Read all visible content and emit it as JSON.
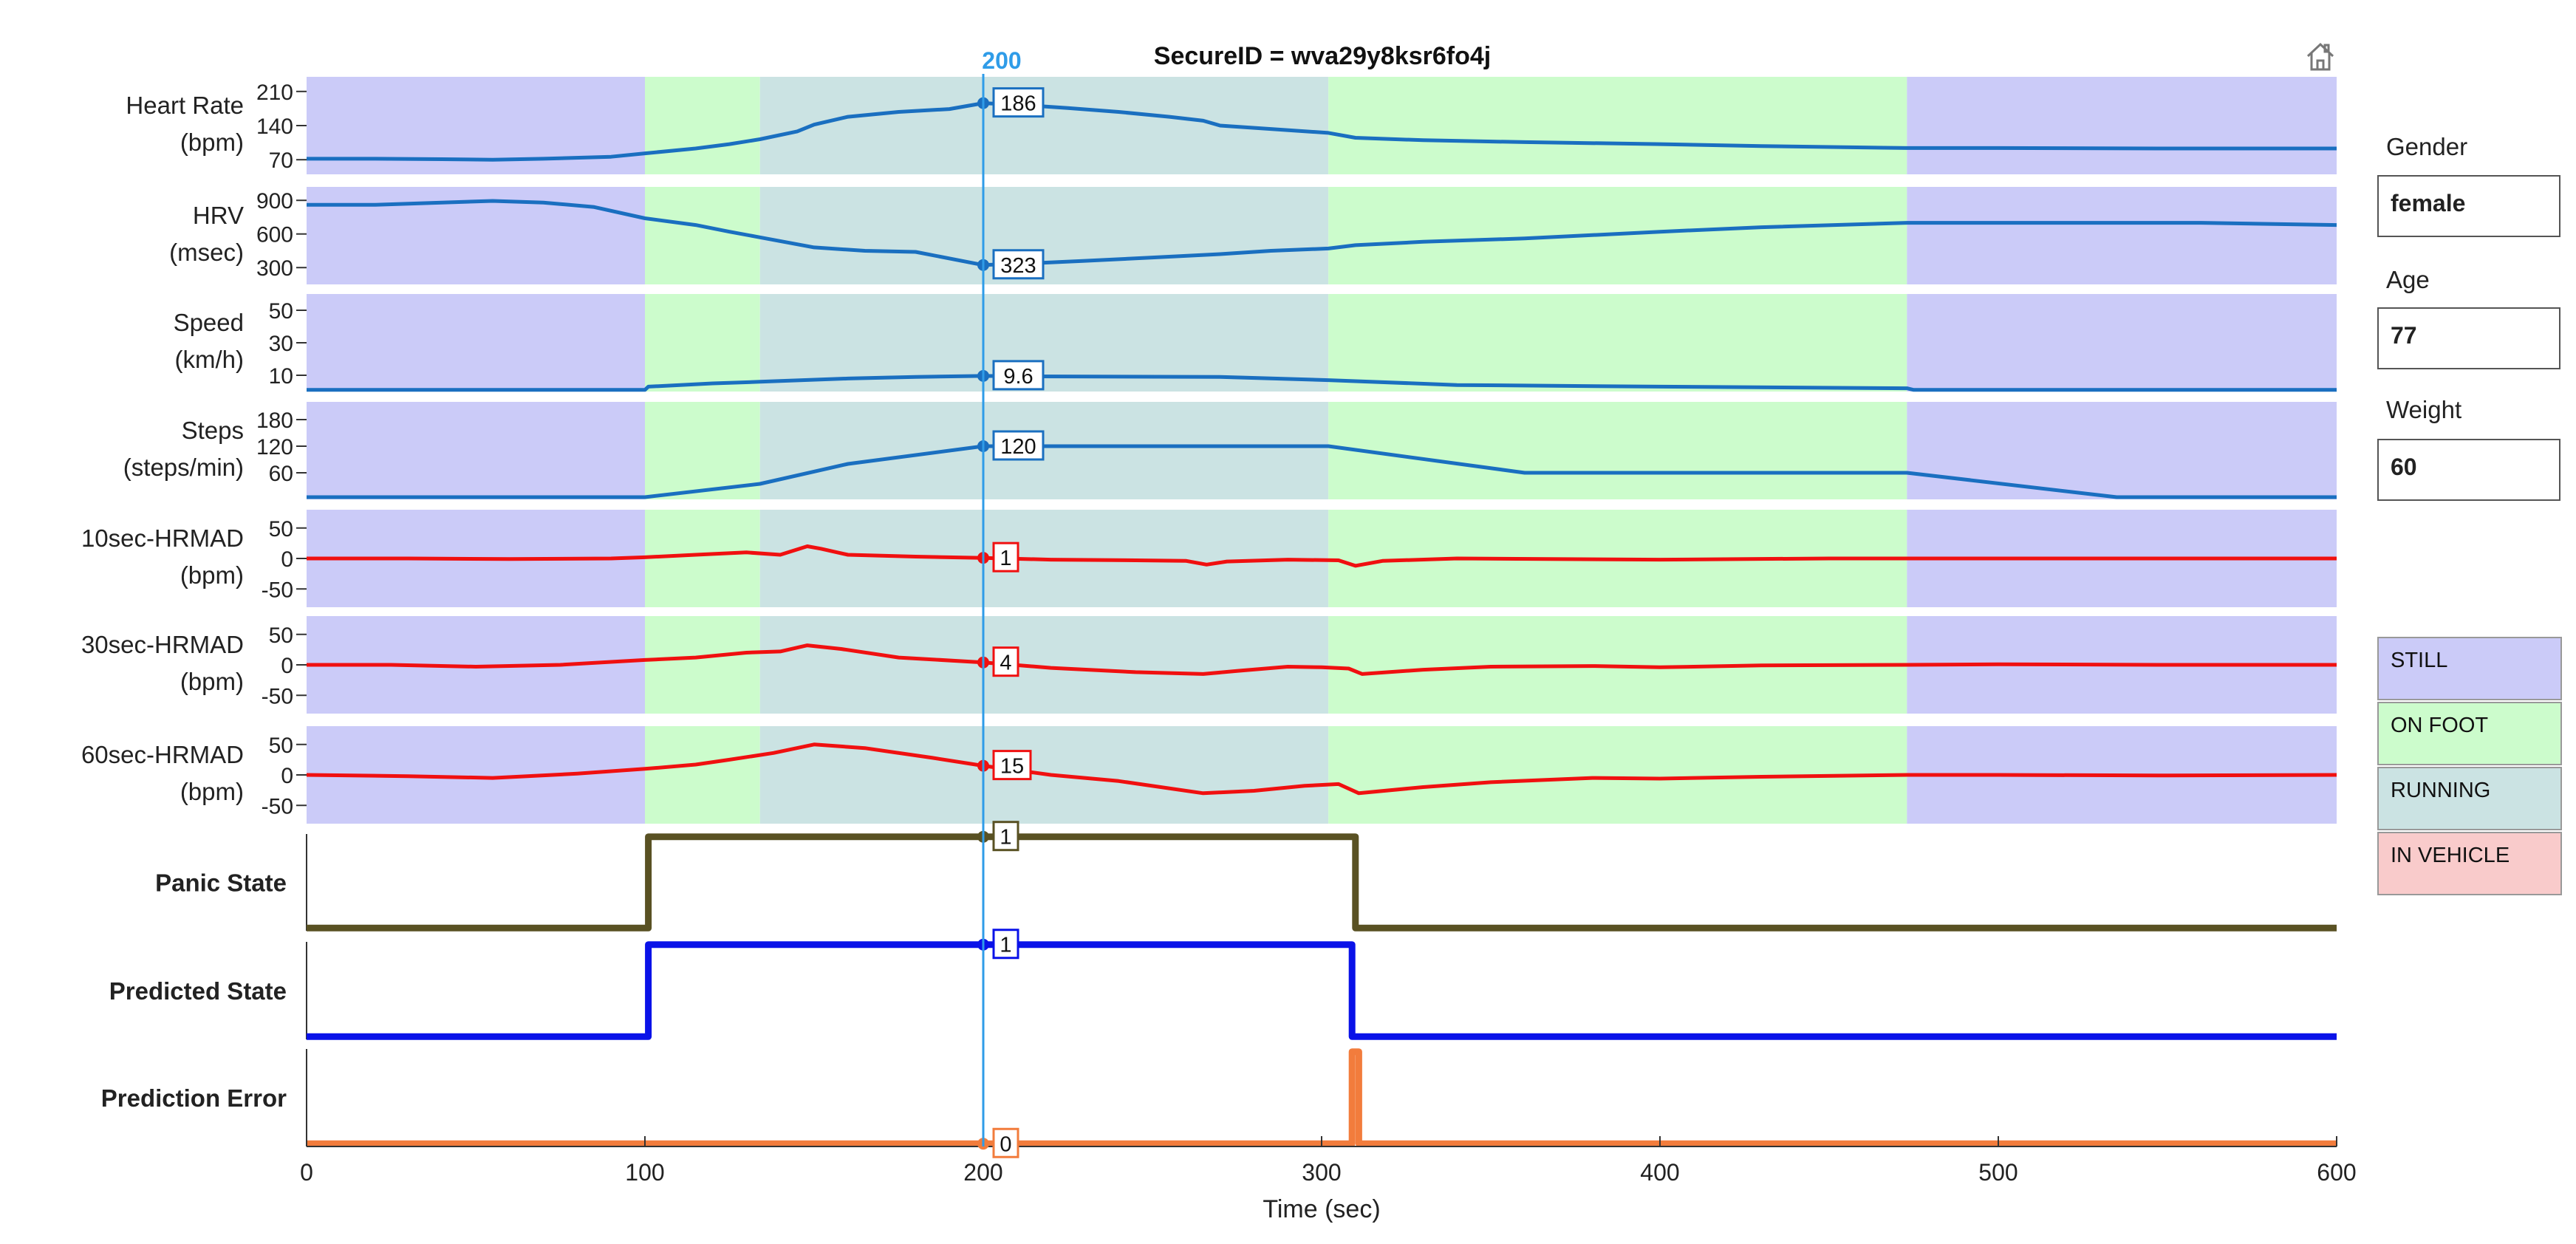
{
  "header": {
    "title": "SecureID = wva29y8ksr6fo4j",
    "cursor_label": "200"
  },
  "icons": {
    "home": "home-icon"
  },
  "colors": {
    "still": "#cbcbf8",
    "on_foot": "#ccfccc",
    "running": "#cbe3e3",
    "in_vehicle": "#f9cbcb",
    "blue_line": "#1a6fc0",
    "red_line": "#f01010",
    "panic": "#595123",
    "predicted": "#0a12e8",
    "error": "#f27c3c",
    "cursor": "#2f9ce8"
  },
  "profile": {
    "gender_label": "Gender",
    "gender_value": "female",
    "age_label": "Age",
    "age_value": "77",
    "weight_label": "Weight",
    "weight_value": "60"
  },
  "legend": [
    {
      "label": "STILL",
      "color": "#cbcbf8"
    },
    {
      "label": "ON FOOT",
      "color": "#ccfccc"
    },
    {
      "label": "RUNNING",
      "color": "#cbe3e3"
    },
    {
      "label": "IN VEHICLE",
      "color": "#f9cbcb"
    }
  ],
  "chart_data": {
    "type": "line",
    "title": "SecureID = wva29y8ksr6fo4j",
    "xlabel": "Time (sec)",
    "xlim": [
      0,
      600
    ],
    "x_ticks": [
      "0",
      "100",
      "200",
      "300",
      "400",
      "500",
      "600"
    ],
    "cursor_x": 200,
    "activity_segments": [
      {
        "start": 0,
        "end": 100,
        "activity": "STILL"
      },
      {
        "start": 100,
        "end": 134,
        "activity": "ON FOOT"
      },
      {
        "start": 134,
        "end": 302,
        "activity": "RUNNING"
      },
      {
        "start": 302,
        "end": 473,
        "activity": "ON FOOT"
      },
      {
        "start": 473,
        "end": 600,
        "activity": "STILL"
      }
    ],
    "panels": [
      {
        "key": "hr",
        "label": [
          "Heart Rate",
          "(bpm)"
        ],
        "ylim": [
          40,
          240
        ],
        "ticks": [
          "70",
          "140",
          "210"
        ],
        "tick_values": [
          70,
          140,
          210
        ],
        "color": "#1a6fc0",
        "shaded": true,
        "step": false,
        "points": [
          [
            0,
            72
          ],
          [
            20,
            72
          ],
          [
            40,
            71
          ],
          [
            55,
            70
          ],
          [
            70,
            72
          ],
          [
            90,
            76
          ],
          [
            100,
            83
          ],
          [
            115,
            93
          ],
          [
            125,
            102
          ],
          [
            134,
            112
          ],
          [
            145,
            128
          ],
          [
            150,
            142
          ],
          [
            160,
            158
          ],
          [
            175,
            168
          ],
          [
            190,
            174
          ],
          [
            200,
            186
          ],
          [
            212,
            182
          ],
          [
            225,
            176
          ],
          [
            240,
            168
          ],
          [
            255,
            158
          ],
          [
            265,
            150
          ],
          [
            270,
            140
          ],
          [
            285,
            133
          ],
          [
            302,
            125
          ],
          [
            310,
            115
          ],
          [
            330,
            110
          ],
          [
            360,
            106
          ],
          [
            400,
            102
          ],
          [
            430,
            98
          ],
          [
            473,
            94
          ],
          [
            500,
            94
          ],
          [
            550,
            93
          ],
          [
            600,
            93
          ]
        ],
        "cursor_value": "186"
      },
      {
        "key": "hrv",
        "label": [
          "HRV",
          "(msec)"
        ],
        "ylim": [
          150,
          1020
        ],
        "ticks": [
          "300",
          "600",
          "900"
        ],
        "tick_values": [
          300,
          600,
          900
        ],
        "color": "#1a6fc0",
        "shaded": true,
        "step": false,
        "points": [
          [
            0,
            860
          ],
          [
            20,
            860
          ],
          [
            40,
            880
          ],
          [
            55,
            895
          ],
          [
            70,
            880
          ],
          [
            85,
            840
          ],
          [
            100,
            740
          ],
          [
            115,
            680
          ],
          [
            125,
            620
          ],
          [
            134,
            570
          ],
          [
            150,
            480
          ],
          [
            165,
            450
          ],
          [
            180,
            440
          ],
          [
            200,
            323
          ],
          [
            215,
            340
          ],
          [
            230,
            360
          ],
          [
            250,
            390
          ],
          [
            270,
            420
          ],
          [
            285,
            450
          ],
          [
            302,
            470
          ],
          [
            310,
            500
          ],
          [
            330,
            530
          ],
          [
            360,
            560
          ],
          [
            400,
            620
          ],
          [
            430,
            660
          ],
          [
            473,
            700
          ],
          [
            520,
            700
          ],
          [
            560,
            700
          ],
          [
            600,
            680
          ]
        ],
        "cursor_value": "323"
      },
      {
        "key": "speed",
        "label": [
          "Speed",
          "(km/h)"
        ],
        "ylim": [
          0,
          60
        ],
        "ticks": [
          "10",
          "30",
          "50"
        ],
        "tick_values": [
          10,
          30,
          50
        ],
        "color": "#1a6fc0",
        "shaded": true,
        "step": false,
        "points": [
          [
            0,
            1
          ],
          [
            100,
            1
          ],
          [
            101,
            3
          ],
          [
            120,
            5
          ],
          [
            134,
            6
          ],
          [
            160,
            8
          ],
          [
            180,
            9
          ],
          [
            200,
            9.6
          ],
          [
            215,
            9.3
          ],
          [
            270,
            9
          ],
          [
            302,
            7
          ],
          [
            340,
            4
          ],
          [
            400,
            3
          ],
          [
            473,
            2
          ],
          [
            475,
            1
          ],
          [
            600,
            1
          ]
        ],
        "cursor_value": "9.6"
      },
      {
        "key": "steps",
        "label": [
          "Steps",
          "(steps/min)"
        ],
        "ylim": [
          0,
          220
        ],
        "ticks": [
          "60",
          "120",
          "180"
        ],
        "tick_values": [
          60,
          120,
          180
        ],
        "color": "#1a6fc0",
        "shaded": true,
        "step": false,
        "points": [
          [
            0,
            5
          ],
          [
            100,
            5
          ],
          [
            134,
            35
          ],
          [
            160,
            80
          ],
          [
            200,
            120
          ],
          [
            302,
            120
          ],
          [
            360,
            60
          ],
          [
            473,
            60
          ],
          [
            535,
            5
          ],
          [
            600,
            5
          ]
        ],
        "cursor_value": "120"
      },
      {
        "key": "hrmad10",
        "label": [
          "10sec-HRMAD",
          "(bpm)"
        ],
        "ylim": [
          -80,
          80
        ],
        "ticks": [
          "-50",
          "0",
          "50"
        ],
        "tick_values": [
          -50,
          0,
          50
        ],
        "color": "#f01010",
        "shaded": true,
        "step": false,
        "points": [
          [
            0,
            0
          ],
          [
            30,
            0
          ],
          [
            60,
            -1
          ],
          [
            90,
            0
          ],
          [
            100,
            2
          ],
          [
            115,
            6
          ],
          [
            130,
            10
          ],
          [
            140,
            6
          ],
          [
            148,
            20
          ],
          [
            152,
            16
          ],
          [
            160,
            6
          ],
          [
            180,
            3
          ],
          [
            200,
            1
          ],
          [
            220,
            -2
          ],
          [
            245,
            -3
          ],
          [
            260,
            -4
          ],
          [
            266,
            -10
          ],
          [
            272,
            -5
          ],
          [
            290,
            -2
          ],
          [
            305,
            -3
          ],
          [
            310,
            -12
          ],
          [
            318,
            -4
          ],
          [
            340,
            0
          ],
          [
            400,
            -2
          ],
          [
            450,
            0
          ],
          [
            500,
            0
          ],
          [
            550,
            0
          ],
          [
            600,
            0
          ]
        ],
        "cursor_value": "1"
      },
      {
        "key": "hrmad30",
        "label": [
          "30sec-HRMAD",
          "(bpm)"
        ],
        "ylim": [
          -80,
          80
        ],
        "ticks": [
          "-50",
          "0",
          "50"
        ],
        "tick_values": [
          -50,
          0,
          50
        ],
        "color": "#f01010",
        "shaded": true,
        "step": false,
        "points": [
          [
            0,
            0
          ],
          [
            25,
            0
          ],
          [
            50,
            -3
          ],
          [
            75,
            0
          ],
          [
            100,
            8
          ],
          [
            115,
            12
          ],
          [
            130,
            20
          ],
          [
            140,
            22
          ],
          [
            148,
            32
          ],
          [
            158,
            26
          ],
          [
            175,
            12
          ],
          [
            200,
            4
          ],
          [
            220,
            -5
          ],
          [
            245,
            -12
          ],
          [
            265,
            -15
          ],
          [
            275,
            -10
          ],
          [
            290,
            -3
          ],
          [
            300,
            -4
          ],
          [
            308,
            -6
          ],
          [
            312,
            -15
          ],
          [
            330,
            -8
          ],
          [
            350,
            -3
          ],
          [
            380,
            -2
          ],
          [
            400,
            -4
          ],
          [
            430,
            -1
          ],
          [
            473,
            0
          ],
          [
            500,
            1
          ],
          [
            550,
            0
          ],
          [
            600,
            0
          ]
        ],
        "cursor_value": "4"
      },
      {
        "key": "hrmad60",
        "label": [
          "60sec-HRMAD",
          "(bpm)"
        ],
        "ylim": [
          -80,
          80
        ],
        "ticks": [
          "-50",
          "0",
          "50"
        ],
        "tick_values": [
          -50,
          0,
          50
        ],
        "color": "#f01010",
        "shaded": true,
        "step": false,
        "points": [
          [
            0,
            0
          ],
          [
            30,
            -2
          ],
          [
            55,
            -5
          ],
          [
            80,
            2
          ],
          [
            100,
            10
          ],
          [
            115,
            17
          ],
          [
            125,
            25
          ],
          [
            138,
            36
          ],
          [
            150,
            50
          ],
          [
            165,
            44
          ],
          [
            185,
            28
          ],
          [
            200,
            15
          ],
          [
            220,
            0
          ],
          [
            240,
            -10
          ],
          [
            265,
            -30
          ],
          [
            280,
            -26
          ],
          [
            295,
            -18
          ],
          [
            305,
            -15
          ],
          [
            311,
            -30
          ],
          [
            330,
            -20
          ],
          [
            350,
            -12
          ],
          [
            380,
            -5
          ],
          [
            400,
            -6
          ],
          [
            430,
            -3
          ],
          [
            473,
            0
          ],
          [
            500,
            0
          ],
          [
            550,
            -1
          ],
          [
            600,
            0
          ]
        ],
        "cursor_value": "15"
      },
      {
        "key": "panic",
        "label": [
          "Panic State"
        ],
        "bold": true,
        "ylim": [
          -0.03,
          1.03
        ],
        "ticks": [],
        "tick_values": [],
        "color": "#595123",
        "shaded": false,
        "step": true,
        "points": [
          [
            0,
            0
          ],
          [
            101,
            0
          ],
          [
            101,
            1
          ],
          [
            310,
            1
          ],
          [
            310,
            0
          ],
          [
            600,
            0
          ]
        ],
        "cursor_value": "1"
      },
      {
        "key": "predicted",
        "label": [
          "Predicted State"
        ],
        "bold": true,
        "ylim": [
          -0.03,
          1.03
        ],
        "ticks": [],
        "tick_values": [],
        "color": "#0a12e8",
        "shaded": false,
        "step": true,
        "points": [
          [
            0,
            0
          ],
          [
            101,
            0
          ],
          [
            101,
            1
          ],
          [
            309,
            1
          ],
          [
            309,
            0
          ],
          [
            600,
            0
          ]
        ],
        "cursor_value": "1"
      },
      {
        "key": "error",
        "label": [
          "Prediction Error"
        ],
        "bold": true,
        "ylim": [
          -0.03,
          1.03
        ],
        "ticks": [],
        "tick_values": [],
        "color": "#f27c3c",
        "shaded": false,
        "step": true,
        "points": [
          [
            0,
            0
          ],
          [
            309,
            0
          ],
          [
            309,
            1
          ],
          [
            311,
            1
          ],
          [
            311,
            0
          ],
          [
            600,
            0
          ]
        ],
        "cursor_value": "0"
      }
    ]
  }
}
